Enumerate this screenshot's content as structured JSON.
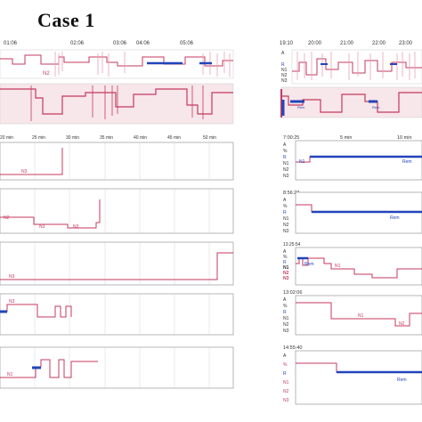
{
  "title": "Case 1",
  "colors": {
    "hypno": "#c43a5e",
    "hypno_light": "#e8a0b4",
    "rem": "#2244bb",
    "grid": "#bbbbbb",
    "panel_border": "#888888",
    "shade": "#f7e6ea"
  },
  "left": {
    "overview_times": [
      "01:06",
      "02:06",
      "03:06",
      "04:06",
      "05:06"
    ],
    "overview_labels": [
      "N2"
    ],
    "zoom_ticks": [
      "20 min",
      "25 min",
      "30 min",
      "35 min",
      "40 min",
      "45 min",
      "50 min"
    ],
    "panels": [
      {
        "labels": [
          "N3"
        ]
      },
      {
        "labels": [
          "N2",
          "N3",
          "N3"
        ]
      },
      {
        "labels": [
          "N3"
        ]
      },
      {
        "labels": [
          "N3"
        ]
      },
      {
        "labels": [
          "N1"
        ]
      }
    ]
  },
  "right": {
    "overview_times": [
      "19:10",
      "20:00",
      "21:00",
      "22:00",
      "23:00"
    ],
    "overview_stages": [
      "A",
      "R",
      "N1",
      "N2",
      "N3"
    ],
    "overview_labels": [
      "Rem",
      "Rem"
    ],
    "panels": [
      {
        "time": "7:00:25",
        "ticks": [
          "5 min",
          "10 min"
        ],
        "stages": [
          "A",
          "%",
          "R",
          "N1",
          "N2",
          "N3"
        ],
        "labels": [
          "N1",
          "Rem"
        ]
      },
      {
        "time": "8:56:23",
        "stages": [
          "A",
          "%",
          "R",
          "N1",
          "N2",
          "N3"
        ],
        "labels": [
          "Rem"
        ]
      },
      {
        "time": "13:25:54",
        "stages": [
          "A",
          "%",
          "R",
          "N1",
          "N2",
          "N3"
        ],
        "labels": [
          "Rem",
          "N1"
        ]
      },
      {
        "time": "13:02:06",
        "stages": [
          "A",
          "%",
          "R",
          "N1",
          "N2",
          "N3"
        ],
        "labels": [
          "N1",
          "N2"
        ]
      },
      {
        "time": "14:55:40",
        "stages": [
          "A",
          "%",
          "R",
          "N1",
          "N2",
          "N3"
        ],
        "labels": [
          "Rem"
        ]
      }
    ]
  }
}
